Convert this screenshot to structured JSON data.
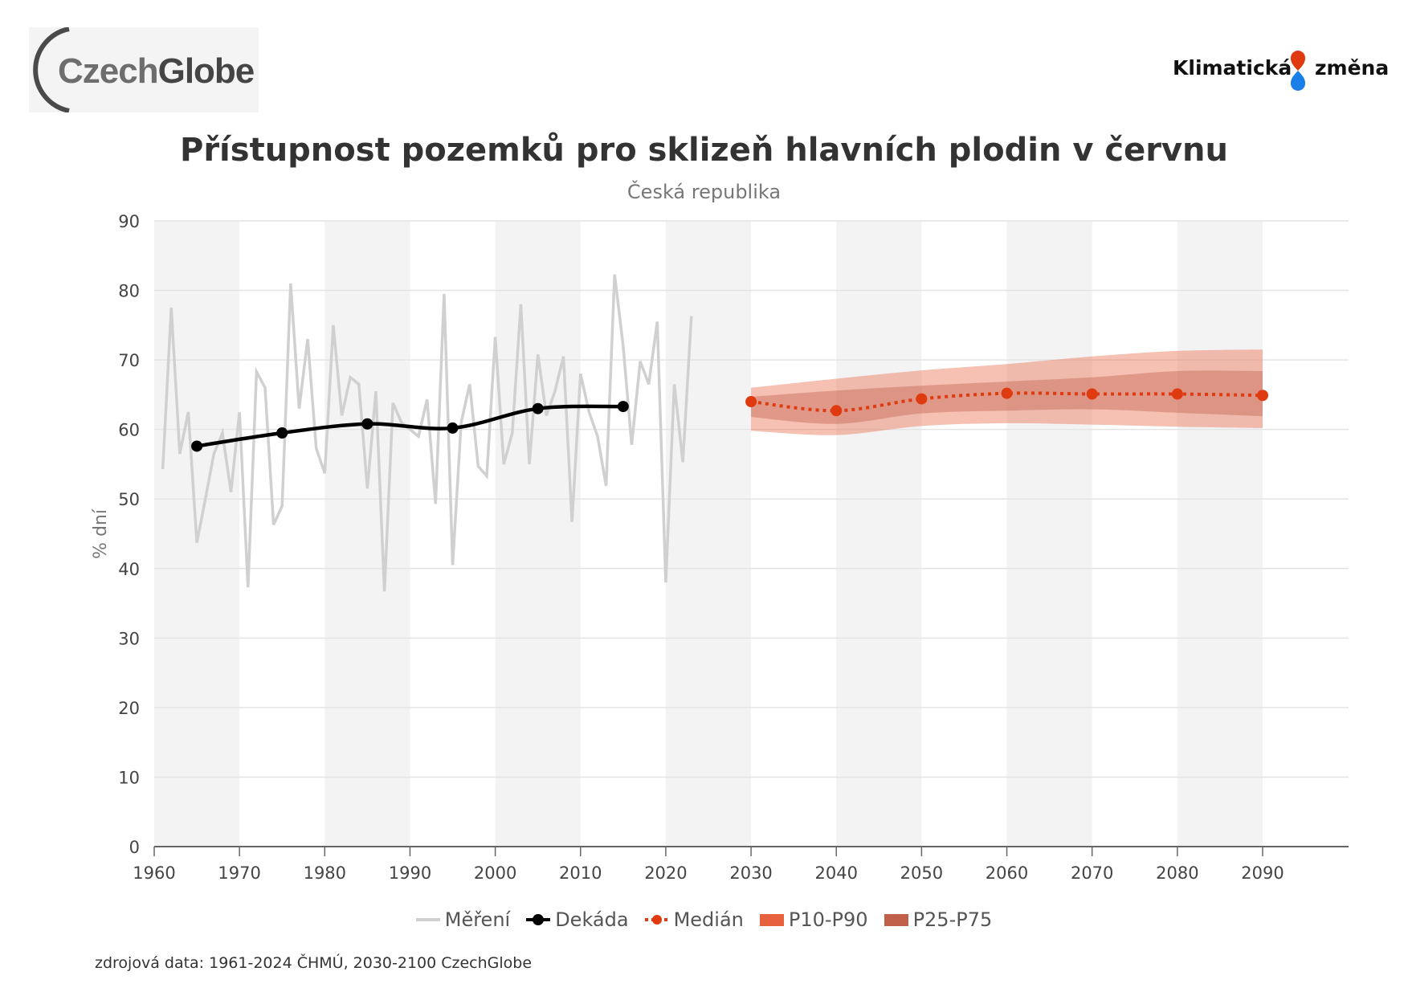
{
  "logos": {
    "left": {
      "part1": "Czech",
      "part2": "Globe"
    },
    "right": {
      "word1": "Klimatická",
      "word2": "změna",
      "drop_top_color": "#e03a10",
      "drop_bottom_color": "#1a7fe8"
    }
  },
  "colors": {
    "measurement": "#d0d0d0",
    "decade": "#000000",
    "median": "#e03a10",
    "p10_p90": "#e8613f",
    "p25_p75": "#c0604a",
    "band_shade": "#f3f3f3",
    "grid": "#e4e4e4"
  },
  "chart_data": {
    "type": "line",
    "title": "Přístupnost pozemků pro sklizeň hlavních plodin v červnu",
    "subtitle": "Česká republika",
    "xlabel": "",
    "ylabel": "% dní",
    "xlim": [
      1960,
      2100
    ],
    "ylim": [
      0,
      90
    ],
    "xticks": [
      "1960",
      "1970",
      "1980",
      "1990",
      "2000",
      "2010",
      "2020",
      "2030",
      "2040",
      "2050",
      "2060",
      "2070",
      "2080",
      "2090"
    ],
    "yticks": [
      "0",
      "10",
      "20",
      "30",
      "40",
      "50",
      "60",
      "70",
      "80",
      "90"
    ],
    "grid": true,
    "legend_position": "bottom",
    "legend": [
      "Měření",
      "Dekáda",
      "Medián",
      "P10-P90",
      "P25-P75"
    ],
    "series": [
      {
        "name": "Měření",
        "x": [
          1961,
          1962,
          1963,
          1964,
          1965,
          1966,
          1967,
          1968,
          1969,
          1970,
          1971,
          1972,
          1973,
          1974,
          1975,
          1976,
          1977,
          1978,
          1979,
          1980,
          1981,
          1982,
          1983,
          1984,
          1985,
          1986,
          1987,
          1988,
          1989,
          1990,
          1991,
          1992,
          1993,
          1994,
          1995,
          1996,
          1997,
          1998,
          1999,
          2000,
          2001,
          2002,
          2003,
          2004,
          2005,
          2006,
          2007,
          2008,
          2009,
          2010,
          2011,
          2012,
          2013,
          2014,
          2015,
          2016,
          2017,
          2018,
          2019,
          2020,
          2021,
          2022,
          2023
        ],
        "y": [
          54.3,
          77.5,
          56.5,
          62.5,
          43.7,
          50,
          56.5,
          59.5,
          51,
          62.5,
          37.3,
          68.3,
          66,
          46.3,
          49,
          81,
          63,
          73,
          57.3,
          53.7,
          75,
          62,
          67.5,
          66.5,
          51.5,
          65.5,
          36.7,
          63.8,
          61,
          60,
          59,
          64.3,
          49.3,
          79.5,
          40.5,
          61,
          66.5,
          54.7,
          53.3,
          73.3,
          55,
          59.5,
          78,
          55,
          70.8,
          62,
          65.5,
          70.5,
          46.7,
          68,
          62.5,
          59,
          51.9,
          82.3,
          72,
          57.8,
          69.8,
          66.5,
          75.5,
          38,
          66.5,
          55.3,
          76.3
        ]
      },
      {
        "name": "Dekáda",
        "x": [
          1965,
          1975,
          1985,
          1995,
          2005,
          2015
        ],
        "y": [
          57.6,
          59.5,
          60.8,
          60.2,
          63.0,
          63.3
        ]
      },
      {
        "name": "Medián",
        "x": [
          2030,
          2040,
          2050,
          2060,
          2070,
          2080,
          2090
        ],
        "y": [
          64.0,
          62.7,
          64.4,
          65.2,
          65.1,
          65.1,
          64.9
        ]
      },
      {
        "name": "P10-P90",
        "x": [
          2030,
          2040,
          2050,
          2060,
          2070,
          2080,
          2090
        ],
        "low": [
          59.8,
          59.2,
          60.5,
          60.9,
          60.7,
          60.4,
          60.2
        ],
        "high": [
          66.0,
          67.3,
          68.5,
          69.4,
          70.5,
          71.3,
          71.5
        ]
      },
      {
        "name": "P25-P75",
        "x": [
          2030,
          2040,
          2050,
          2060,
          2070,
          2080,
          2090
        ],
        "low": [
          61.8,
          60.8,
          62.3,
          62.7,
          62.9,
          62.4,
          61.9
        ],
        "high": [
          64.7,
          65.6,
          66.3,
          66.9,
          67.5,
          68.4,
          68.4
        ]
      }
    ]
  },
  "footer": {
    "source": "zdrojová data: 1961-2024 ČHMÚ, 2030-2100 CzechGlobe"
  }
}
